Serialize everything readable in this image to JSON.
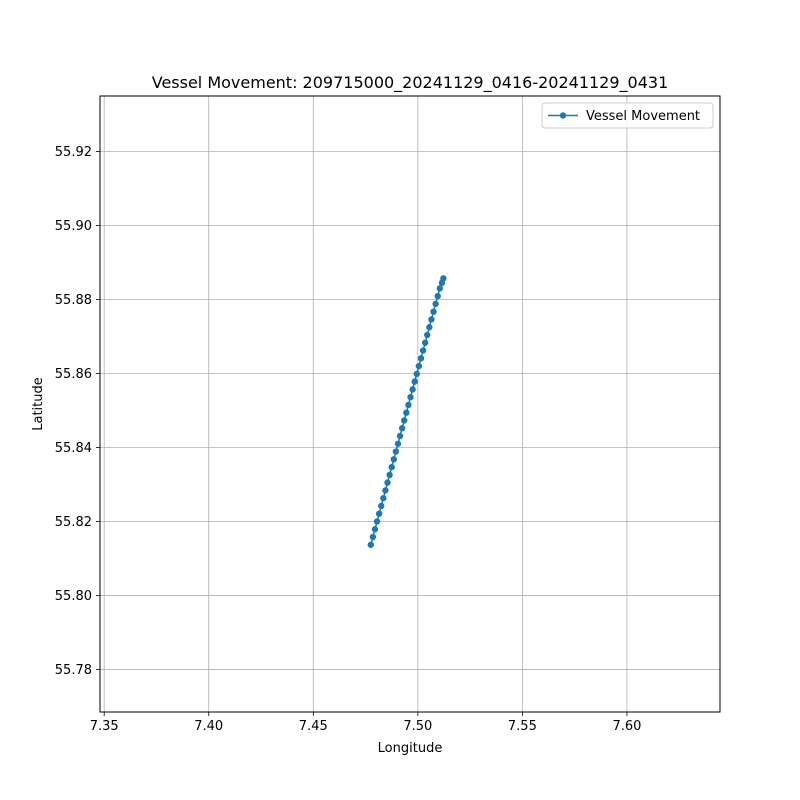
{
  "chart_data": {
    "type": "line",
    "title": "Vessel Movement: 209715000_20241129_0416-20241129_0431",
    "xlabel": "Longitude",
    "ylabel": "Latitude",
    "xlim": [
      7.348,
      7.6445
    ],
    "ylim": [
      55.7685,
      55.935
    ],
    "xticks": [
      "7.35",
      "7.40",
      "7.45",
      "7.50",
      "7.55",
      "7.60"
    ],
    "xtick_values": [
      7.35,
      7.4,
      7.45,
      7.5,
      7.55,
      7.6
    ],
    "yticks": [
      "55.78",
      "55.80",
      "55.82",
      "55.84",
      "55.86",
      "55.88",
      "55.90",
      "55.92"
    ],
    "ytick_values": [
      55.78,
      55.8,
      55.82,
      55.84,
      55.86,
      55.88,
      55.9,
      55.92
    ],
    "grid": true,
    "legend_position": "top-right",
    "series": [
      {
        "name": "Vessel Movement",
        "color": "#1f77b4",
        "marker": "circle",
        "x": [
          7.4775,
          7.4785,
          7.4795,
          7.4805,
          7.4815,
          7.4825,
          7.4835,
          7.4845,
          7.4855,
          7.4865,
          7.4875,
          7.4885,
          7.4895,
          7.4905,
          7.4915,
          7.4925,
          7.4935,
          7.4945,
          7.4955,
          7.4965,
          7.4975,
          7.4985,
          7.4995,
          7.5005,
          7.5015,
          7.5025,
          7.5035,
          7.5045,
          7.5055,
          7.5065,
          7.5075,
          7.5085,
          7.5095,
          7.5105,
          7.5115,
          7.5122
        ],
        "y": [
          55.8137,
          55.8158,
          55.8179,
          55.82,
          55.8221,
          55.8242,
          55.8263,
          55.8284,
          55.8305,
          55.8326,
          55.8347,
          55.8368,
          55.8389,
          55.841,
          55.8431,
          55.8452,
          55.8473,
          55.8494,
          55.8515,
          55.8536,
          55.8557,
          55.8578,
          55.8599,
          55.862,
          55.8641,
          55.8662,
          55.8683,
          55.8704,
          55.8725,
          55.8746,
          55.8767,
          55.8788,
          55.8809,
          55.883,
          55.8845,
          55.8857
        ]
      }
    ]
  }
}
